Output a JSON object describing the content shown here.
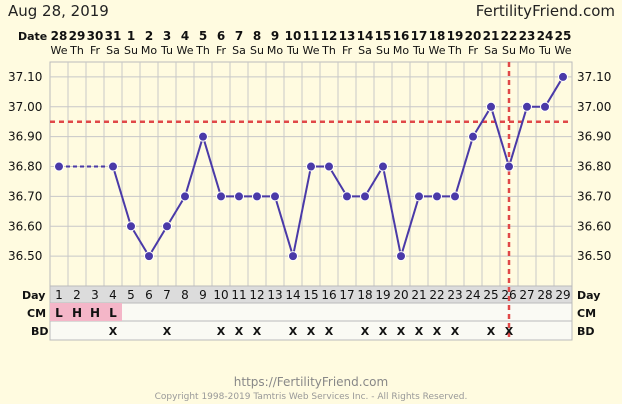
{
  "header": {
    "chart_date": "Aug 28, 2019",
    "site_name": "FertilityFriend.com",
    "date_row_label": "Date"
  },
  "footer": {
    "url": "https://FertilityFriend.com",
    "copyright": "Copyright 1998-2019 Tamtris Web Services Inc. - All Rights Reserved."
  },
  "colors": {
    "background": "#fffbe0",
    "series_line": "#4a3aa8",
    "coverline": "#e04848",
    "ovulation_line": "#e04848",
    "grid": "#c8c8c8",
    "cm_highlight": "#f4b6c8",
    "day_row_bg": "#dcdcdc"
  },
  "chart_data": {
    "type": "line",
    "dates": [
      "28",
      "29",
      "30",
      "31",
      "1",
      "2",
      "3",
      "4",
      "5",
      "6",
      "7",
      "8",
      "9",
      "10",
      "11",
      "12",
      "13",
      "14",
      "15",
      "16",
      "17",
      "18",
      "19",
      "20",
      "21",
      "22",
      "23",
      "24",
      "25"
    ],
    "weekdays": [
      "We",
      "Th",
      "Fr",
      "Sa",
      "Su",
      "Mo",
      "Tu",
      "We",
      "Th",
      "Fr",
      "Sa",
      "Su",
      "Mo",
      "Tu",
      "We",
      "Th",
      "Fr",
      "Sa",
      "Su",
      "Mo",
      "Tu",
      "We",
      "Th",
      "Fr",
      "Sa",
      "Su",
      "Mo",
      "Tu",
      "We"
    ],
    "cycle_days": [
      "1",
      "2",
      "3",
      "4",
      "5",
      "6",
      "7",
      "8",
      "9",
      "10",
      "11",
      "12",
      "13",
      "14",
      "15",
      "16",
      "17",
      "18",
      "19",
      "20",
      "21",
      "22",
      "23",
      "24",
      "25",
      "26",
      "27",
      "28",
      "29"
    ],
    "temperatures": [
      36.8,
      null,
      null,
      36.8,
      36.6,
      36.5,
      36.6,
      36.7,
      36.9,
      36.7,
      36.7,
      36.7,
      36.7,
      36.5,
      36.8,
      36.8,
      36.7,
      36.7,
      36.8,
      36.5,
      36.7,
      36.7,
      36.7,
      36.9,
      37.0,
      36.8,
      37.0,
      37.0,
      37.1
    ],
    "y_ticks": [
      "36.50",
      "36.60",
      "36.70",
      "36.80",
      "36.90",
      "37.00",
      "37.10"
    ],
    "ylim": [
      36.4,
      37.15
    ],
    "coverline": 36.95,
    "ovulation_cycle_day": 26,
    "rows": {
      "day_label": "Day",
      "cm_label": "CM",
      "bd_label": "BD",
      "cm": [
        "L",
        "H",
        "H",
        "L",
        "",
        "",
        "",
        "",
        "",
        "",
        "",
        "",
        "",
        "",
        "",
        "",
        "",
        "",
        "",
        "",
        "",
        "",
        "",
        "",
        "",
        "",
        "",
        "",
        ""
      ],
      "bd": [
        "",
        "",
        "",
        "X",
        "",
        "",
        "X",
        "",
        "",
        "X",
        "X",
        "X",
        "",
        "X",
        "X",
        "X",
        "",
        "X",
        "X",
        "X",
        "X",
        "X",
        "X",
        "",
        "X",
        "X",
        "",
        "",
        ""
      ]
    },
    "grid": true
  }
}
